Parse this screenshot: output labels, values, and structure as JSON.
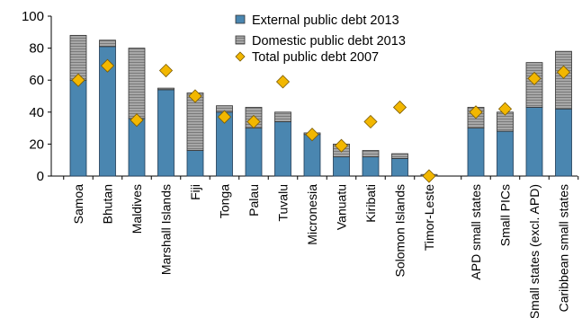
{
  "chart_data": {
    "type": "bar",
    "stacked": true,
    "categories": [
      "Samoa",
      "Bhutan",
      "Maldives",
      "Marshall Islands",
      "Fiji",
      "Tonga",
      "Palau",
      "Tuvalu",
      "Micronesia",
      "Vanuatu",
      "Kiribati",
      "Solomon Islands",
      "Timor-Leste",
      "APD small states",
      "Small PICs",
      "Small states (excl. APD)",
      "Caribbean small states"
    ],
    "category_groups": [
      [
        0,
        12
      ],
      [
        13,
        16
      ]
    ],
    "series": [
      {
        "name": "External public debt 2013",
        "kind": "bar",
        "color": "#4a86b0",
        "values": [
          60,
          81,
          36,
          54,
          16,
          40,
          30,
          34,
          26,
          12,
          12,
          11,
          0,
          30,
          28,
          43,
          42
        ]
      },
      {
        "name": "Domestic public debt 2013",
        "kind": "bar",
        "color": "#9b9b9b",
        "values": [
          28,
          4,
          44,
          1,
          36,
          4,
          13,
          6,
          1,
          8,
          4,
          3,
          1,
          13,
          12,
          28,
          36
        ]
      },
      {
        "name": "Total public debt 2007",
        "kind": "marker",
        "color": "#f2b700",
        "values": [
          60,
          69,
          35,
          66,
          50,
          37,
          34,
          59,
          26,
          19,
          34,
          43,
          0,
          40,
          42,
          61,
          65
        ]
      }
    ],
    "yticks": [
      "0",
      "20",
      "40",
      "60",
      "80",
      "100"
    ],
    "ylim": [
      0,
      100
    ],
    "grid": false,
    "legend": "top-center"
  }
}
